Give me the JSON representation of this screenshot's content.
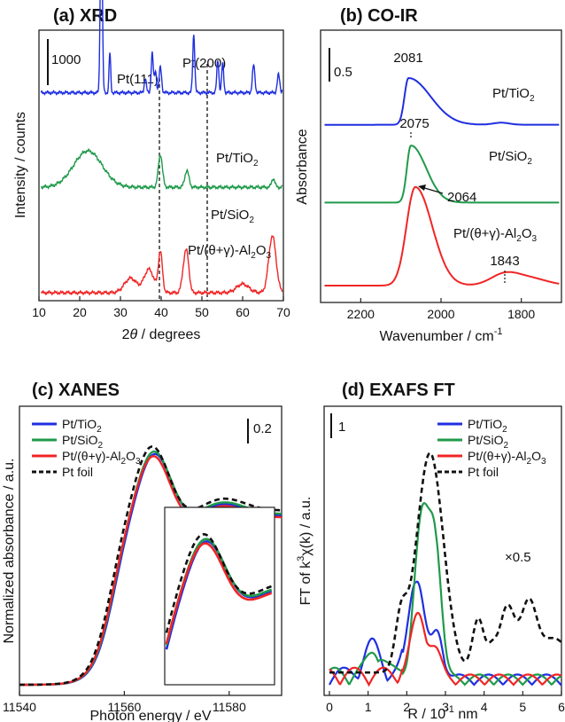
{
  "colors": {
    "blue": "#1f2fe0",
    "green": "#1f9a4a",
    "red": "#f02525",
    "black": "#111111"
  },
  "chart_data": [
    {
      "id": "a",
      "type": "line",
      "title": "(a) XRD",
      "xlabel_prefix": "2",
      "xlabel_theta": "θ",
      "xlabel_suffix": " / degrees",
      "ylabel": "Intensity / counts",
      "xlim": [
        10,
        70
      ],
      "xticks": [
        "10",
        "20",
        "30",
        "40",
        "50",
        "60",
        "70"
      ],
      "scale_bar": "1000",
      "reference_lines": [
        {
          "label": "Pt(111)",
          "x": 39.8
        },
        {
          "label": "Pt(200)",
          "x": 46.3
        }
      ],
      "series": [
        {
          "name_main": "Pt/TiO",
          "name_sub": "2",
          "name_tail": "",
          "color": "blue",
          "offset": 2750,
          "peaks": [
            [
              25.3,
              2600,
              0.25
            ],
            [
              27.4,
              550,
              0.2
            ],
            [
              36.1,
              200,
              0.25
            ],
            [
              37.8,
              550,
              0.25
            ],
            [
              38.6,
              300,
              0.25
            ],
            [
              39.8,
              350,
              0.3
            ],
            [
              48.0,
              800,
              0.25
            ],
            [
              53.9,
              450,
              0.25
            ],
            [
              55.1,
              400,
              0.25
            ],
            [
              62.7,
              380,
              0.3
            ],
            [
              68.8,
              250,
              0.3
            ],
            [
              70.3,
              250,
              0.3
            ]
          ]
        },
        {
          "name_main": "Pt/SiO",
          "name_sub": "2",
          "name_tail": "",
          "color": "green",
          "offset": 1450,
          "peaks": [
            [
              22.0,
              500,
              3.5
            ],
            [
              39.8,
              450,
              0.5
            ],
            [
              46.3,
              230,
              0.5
            ],
            [
              67.5,
              120,
              0.4
            ]
          ]
        },
        {
          "name_main": "Pt/(θ+γ)-Al",
          "name_sub": "2",
          "name_tail": "O",
          "name_sub2": "3",
          "color": "red",
          "offset": 0,
          "peaks": [
            [
              32.5,
              200,
              1.5
            ],
            [
              37.0,
              320,
              1.2
            ],
            [
              39.8,
              550,
              0.5
            ],
            [
              45.8,
              420,
              0.6
            ],
            [
              46.5,
              300,
              0.5
            ],
            [
              60.0,
              120,
              1.5
            ],
            [
              67.3,
              780,
              0.9
            ]
          ]
        }
      ]
    },
    {
      "id": "b",
      "type": "line",
      "title": "(b) CO-IR",
      "xlabel": "Wavenumber / cm",
      "xlabel_sup": "-1",
      "ylabel": "Absorbance",
      "xlim": [
        2300,
        1700
      ],
      "xticks": [
        "2200",
        "2000",
        "1800"
      ],
      "scale_bar": "0.5",
      "peak_labels": [
        "2081",
        "2075",
        "2064",
        "1843"
      ],
      "series": [
        {
          "name_main": "Pt/TiO",
          "name_sub": "2",
          "name_tail": "",
          "color": "blue",
          "offset": 1.55,
          "peak": 2081,
          "height": 0.45
        },
        {
          "name_main": "Pt/SiO",
          "name_sub": "2",
          "name_tail": "",
          "color": "green",
          "offset": 0.8,
          "peak": 2075,
          "height": 0.55
        },
        {
          "name_main": "Pt/(θ+γ)-Al",
          "name_sub": "2",
          "name_tail": "O",
          "name_sub2": "3",
          "color": "red",
          "offset": 0.0,
          "peak": 2064,
          "height": 0.95
        }
      ]
    },
    {
      "id": "c",
      "type": "line",
      "title": "(c) XANES",
      "xlabel": "Photon energy / eV",
      "ylabel": "Normalized absorbance / a.u.",
      "xlim": [
        11540,
        11590
      ],
      "xticks": [
        "11540",
        "11560",
        "11580"
      ],
      "scale_bar": "0.2",
      "legend": [
        {
          "name_main": "Pt/TiO",
          "name_sub": "2",
          "name_tail": "",
          "color": "blue",
          "dash": false
        },
        {
          "name_main": "Pt/SiO",
          "name_sub": "2",
          "name_tail": "",
          "color": "green",
          "dash": false
        },
        {
          "name_main": "Pt/(θ+γ)-Al",
          "name_sub": "2",
          "name_tail": "O",
          "name_sub2": "3",
          "color": "red",
          "dash": false
        },
        {
          "name_main": "Pt foil",
          "name_sub": "",
          "name_tail": "",
          "color": "black",
          "dash": true
        }
      ]
    },
    {
      "id": "d",
      "type": "line",
      "title": "(d) EXAFS FT",
      "xlabel": "R / 10",
      "xlabel_sup": "-1",
      "xlabel_tail": " nm",
      "ylabel_main": "FT of k",
      "ylabel_sup": "3",
      "ylabel_tail": "χ(k) / a.u.",
      "xlim": [
        0,
        6
      ],
      "xticks": [
        "0",
        "1",
        "2",
        "3",
        "4",
        "5",
        "6"
      ],
      "scale_bar": "1",
      "annotation": "×0.5",
      "legend": [
        {
          "name_main": "Pt/TiO",
          "name_sub": "2",
          "name_tail": "",
          "color": "blue",
          "dash": false
        },
        {
          "name_main": "Pt/SiO",
          "name_sub": "2",
          "name_tail": "",
          "color": "green",
          "dash": false
        },
        {
          "name_main": "Pt/(θ+γ)-Al",
          "name_sub": "2",
          "name_tail": "O",
          "name_sub2": "3",
          "color": "red",
          "dash": false
        },
        {
          "name_main": "Pt foil",
          "name_sub": "",
          "name_tail": "",
          "color": "black",
          "dash": true
        }
      ],
      "series": [
        {
          "color": "blue",
          "main_peak": [
            2.25,
            2.1
          ],
          "shoulder": [
            2.8,
            0.9
          ]
        },
        {
          "color": "green",
          "main_peak": [
            2.4,
            3.3
          ],
          "shoulder": [
            2.75,
            2.4
          ]
        },
        {
          "color": "red",
          "main_peak": [
            2.3,
            1.3
          ],
          "shoulder": [
            2.75,
            0.5
          ]
        },
        {
          "color": "black",
          "dash": true,
          "main_peak": [
            2.6,
            4.5
          ],
          "shoulder": [
            4.6,
            1.35
          ]
        }
      ]
    }
  ]
}
